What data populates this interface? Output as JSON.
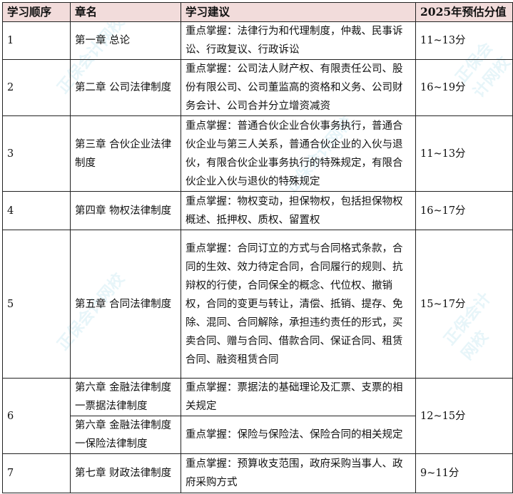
{
  "header": {
    "order": "学习顺序",
    "chapter": "章名",
    "advice": "学习建议",
    "score": "2025年预估分值"
  },
  "rows": [
    {
      "order": "1",
      "chapter": "第一章  总论",
      "advice": "重点掌握：法律行为和代理制度，仲裁、民事诉讼、行政复议、行政诉讼",
      "score": "11~13分"
    },
    {
      "order": "2",
      "chapter": "第二章  公司法律制度",
      "advice": "重点掌握：公司法人财产权、有限责任公司、股份有限公司、公司董监高的资格和义务、公司财务会计、公司合并分立增资减资",
      "score": "16~19分"
    },
    {
      "order": "3",
      "chapter": "第三章  合伙企业法律制度",
      "advice": "重点掌握：普通合伙企业合伙事务执行，普通合伙企业与第三人关系，普通合伙企业的入伙与退伙，有限合伙企业事务执行的特殊规定，有限合伙企业入伙与退伙的特殊规定",
      "score": "11~13分"
    },
    {
      "order": "4",
      "chapter": "第四章  物权法律制度",
      "advice": "重点掌握：物权变动，担保物权，包括担保物权概述、抵押权、质权、留置权",
      "score": "16~17分"
    },
    {
      "order": "5",
      "chapter": "第五章  合同法律制度",
      "advice": "重点掌握：合同订立的方式与合同格式条款，合同的生效、效力待定合同，合同履行的规则、抗辩权的行使，合同保全的概念、代位权、撤销权，合同的变更与转让，清偿、抵销、提存、免除、混同、合同解除，承担违约责任的形式，买卖合同、赠与合同、借款合同、保证合同、租赁合同、融资租赁合同",
      "score": "15~17分"
    },
    {
      "order": "6",
      "chapter": "第六章  金融法律制度一票据法律制度",
      "advice": "重点掌握：票据法的基础理论及汇票、支票的相关规定",
      "score": "12~15分",
      "chapter2": "第六章  金融法律制度一保险法律制度",
      "advice2": "重点掌握：保险与保险法、保险合同的相关规定"
    },
    {
      "order": "7",
      "chapter": "第七章  财政法律制度",
      "advice": "重点掌握：预算收支范围，政府采购当事人、政府采购方式",
      "score": "9~11分"
    }
  ],
  "colors": {
    "header_bg": "#f2dcdb",
    "border": "#222222"
  }
}
